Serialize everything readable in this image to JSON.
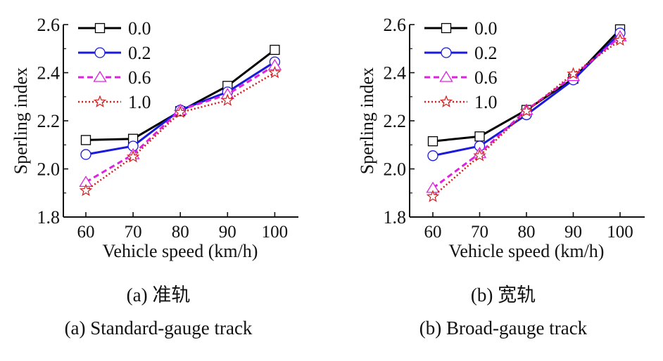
{
  "colors": {
    "s0": "#000000",
    "s1": "#1a1ad8",
    "s2": "#e020e0",
    "s3": "#d02020"
  },
  "panels": [
    {
      "caption_cn": "(a) 准轨",
      "caption_en": "(a) Standard-gauge track"
    },
    {
      "caption_cn": "(b) 宽轨",
      "caption_en": "(b) Broad-gauge track"
    }
  ],
  "chart_data": [
    {
      "type": "line",
      "title": "",
      "xlabel": "Vehicle speed (km/h)",
      "ylabel": "Sperling index",
      "x": [
        60,
        70,
        80,
        90,
        100
      ],
      "xticks": [
        "60",
        "70",
        "80",
        "90",
        "100"
      ],
      "ylim": [
        1.8,
        2.6
      ],
      "yticks": [
        "1.8",
        "2.0",
        "2.2",
        "2.4",
        "2.6"
      ],
      "grid": false,
      "legend_position": "top-left",
      "series": [
        {
          "name": "0.0",
          "values": [
            2.12,
            2.125,
            2.24,
            2.345,
            2.495
          ],
          "marker": "square",
          "line": "solid",
          "color_key": "s0"
        },
        {
          "name": "0.2",
          "values": [
            2.06,
            2.095,
            2.245,
            2.32,
            2.445
          ],
          "marker": "circle",
          "line": "solid",
          "color_key": "s1"
        },
        {
          "name": "0.6",
          "values": [
            1.945,
            2.06,
            2.245,
            2.31,
            2.43
          ],
          "marker": "triangle",
          "line": "dashed",
          "color_key": "s2"
        },
        {
          "name": "1.0",
          "values": [
            1.91,
            2.05,
            2.235,
            2.285,
            2.4
          ],
          "marker": "star",
          "line": "dotted",
          "color_key": "s3"
        }
      ]
    },
    {
      "type": "line",
      "title": "",
      "xlabel": "Vehicle speed (km/h)",
      "ylabel": "Sperling index",
      "x": [
        60,
        70,
        80,
        90,
        100
      ],
      "xticks": [
        "60",
        "70",
        "80",
        "90",
        "100"
      ],
      "ylim": [
        1.8,
        2.6
      ],
      "yticks": [
        "1.8",
        "2.0",
        "2.2",
        "2.4",
        "2.6"
      ],
      "grid": false,
      "legend_position": "top-left",
      "series": [
        {
          "name": "0.0",
          "values": [
            2.115,
            2.135,
            2.245,
            2.375,
            2.58
          ],
          "marker": "square",
          "line": "solid",
          "color_key": "s0"
        },
        {
          "name": "0.2",
          "values": [
            2.055,
            2.095,
            2.225,
            2.37,
            2.565
          ],
          "marker": "circle",
          "line": "solid",
          "color_key": "s1"
        },
        {
          "name": "0.6",
          "values": [
            1.92,
            2.065,
            2.245,
            2.385,
            2.55
          ],
          "marker": "triangle",
          "line": "dashed",
          "color_key": "s2"
        },
        {
          "name": "1.0",
          "values": [
            1.885,
            2.055,
            2.24,
            2.395,
            2.535
          ],
          "marker": "star",
          "line": "dotted",
          "color_key": "s3"
        }
      ]
    }
  ]
}
